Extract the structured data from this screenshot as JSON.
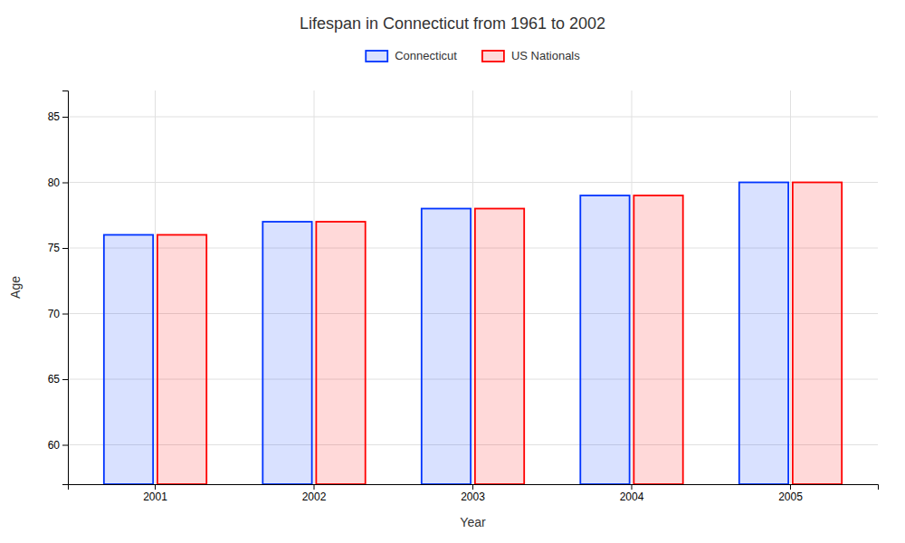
{
  "chart_data": {
    "type": "bar",
    "title": "Lifespan in Connecticut from 1961 to 2002",
    "xlabel": "Year",
    "ylabel": "Age",
    "categories": [
      "2001",
      "2002",
      "2003",
      "2004",
      "2005"
    ],
    "series": [
      {
        "name": "Connecticut",
        "color": "#0033ff",
        "values": [
          76,
          77,
          78,
          79,
          80
        ]
      },
      {
        "name": "US Nationals",
        "color": "#ff0000",
        "values": [
          76,
          77,
          78,
          79,
          80
        ]
      }
    ],
    "ylim": [
      57,
      87
    ],
    "yticks": [
      60,
      65,
      70,
      75,
      80,
      85
    ],
    "grid": true,
    "legend": "top"
  }
}
